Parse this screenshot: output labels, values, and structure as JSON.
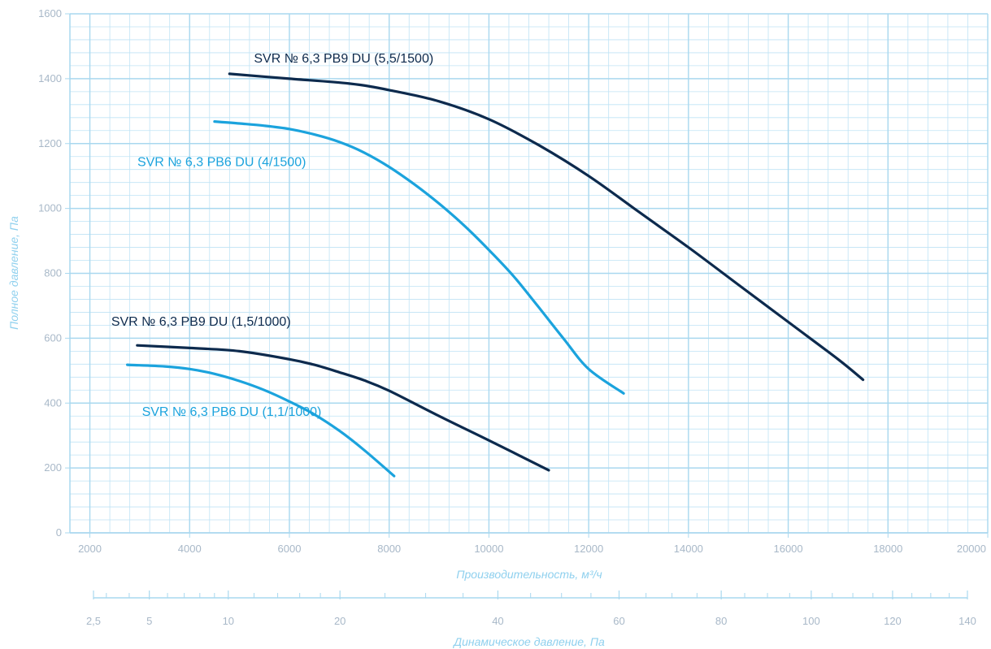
{
  "chart_data": {
    "type": "line",
    "title": "",
    "xlabel": "Производительность, м³/ч",
    "ylabel": "Полное давление, Па",
    "xlim": [
      1600,
      20000
    ],
    "ylim": [
      0,
      1600
    ],
    "x_ticks": [
      "2000",
      "4000",
      "6000",
      "8000",
      "10000",
      "12000",
      "14000",
      "16000",
      "18000",
      "20000"
    ],
    "y_ticks": [
      "0",
      "200",
      "400",
      "600",
      "800",
      "1000",
      "1200",
      "1400",
      "1600"
    ],
    "grid": true,
    "colors": {
      "dark": "#0d2a4d",
      "light": "#1ba3dd",
      "grid": "#bfe3f5",
      "grid_major": "#a9d8ef"
    },
    "series": [
      {
        "name": "SVR № 6,3 PB9 DU (5,5/1500)",
        "color": "dark",
        "x": [
          4800,
          6000,
          7200,
          8000,
          9000,
          10000,
          11000,
          12000,
          13000,
          14000,
          15000,
          16000,
          17000,
          17500
        ],
        "y": [
          1415,
          1400,
          1385,
          1365,
          1330,
          1275,
          1195,
          1100,
          990,
          880,
          765,
          650,
          535,
          472
        ]
      },
      {
        "name": "SVR № 6,3 PB6 DU (4/1500)",
        "color": "light",
        "x": [
          4500,
          5000,
          5500,
          6000,
          6500,
          7000,
          7500,
          8000,
          8500,
          9000,
          9500,
          10000,
          10500,
          11000,
          11500,
          12000,
          12700
        ],
        "y": [
          1268,
          1262,
          1255,
          1245,
          1228,
          1205,
          1172,
          1128,
          1075,
          1015,
          948,
          872,
          790,
          695,
          598,
          505,
          430
        ]
      },
      {
        "name": "SVR № 6,3 PB9 DU (1,5/1000)",
        "color": "dark",
        "x": [
          2950,
          4000,
          5000,
          6000,
          6500,
          7000,
          7500,
          8000,
          9000,
          10000,
          11200
        ],
        "y": [
          578,
          570,
          560,
          535,
          518,
          495,
          470,
          438,
          360,
          285,
          193
        ]
      },
      {
        "name": "SVR № 6,3 PB6 DU (1,1/1000)",
        "color": "light",
        "x": [
          2750,
          3500,
          4000,
          4500,
          5000,
          5500,
          6000,
          6500,
          7000,
          7500,
          8100
        ],
        "y": [
          518,
          513,
          505,
          490,
          468,
          440,
          405,
          365,
          315,
          255,
          175
        ]
      }
    ],
    "secondary_axis": {
      "label": "Динамическое давление, Па",
      "ticks": [
        {
          "label": "2,5",
          "value": 2.5
        },
        {
          "label": "5",
          "value": 5
        },
        {
          "label": "10",
          "value": 10
        },
        {
          "label": "20",
          "value": 20
        },
        {
          "label": "40",
          "value": 40
        },
        {
          "label": "60",
          "value": 60
        },
        {
          "label": "80",
          "value": 80
        },
        {
          "label": "100",
          "value": 100
        },
        {
          "label": "120",
          "value": 120
        },
        {
          "label": "140",
          "value": 140
        }
      ]
    }
  }
}
